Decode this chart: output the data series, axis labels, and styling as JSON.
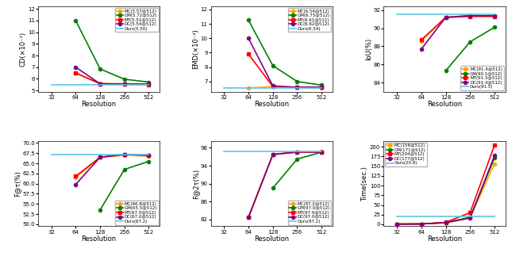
{
  "resolutions": [
    32,
    64,
    128,
    256,
    512
  ],
  "colors": {
    "MC": "orange",
    "GM": "green",
    "MT": "red",
    "DC": "purple",
    "Ours": "#5bc8e8"
  },
  "markers": {
    "MC": "o",
    "GM": "o",
    "MT": "s",
    "DC": "o",
    "Ours": null
  },
  "CD": {
    "MC": [
      null,
      6.5,
      5.6,
      5.58,
      5.57
    ],
    "GM": [
      null,
      11.0,
      6.85,
      5.97,
      5.72
    ],
    "MT": [
      null,
      6.5,
      5.58,
      5.55,
      5.51
    ],
    "DC": [
      null,
      7.0,
      5.58,
      5.55,
      5.54
    ],
    "Ours": [
      5.5,
      5.5,
      5.5,
      5.5,
      5.5
    ],
    "ylabel": "CD(×10⁻¹)",
    "ylim": [
      4.9,
      12.2
    ],
    "yticks": [
      5,
      6,
      7,
      8,
      9,
      10,
      11,
      12
    ],
    "legend_vals": {
      "MC": "5.57",
      "GM": "5.72",
      "MT": "5.51",
      "DC": "5.54",
      "Ours": "5.50"
    },
    "legend_loc": "upper right"
  },
  "EMD": {
    "MC": [
      null,
      6.55,
      6.65,
      6.6,
      6.54
    ],
    "GM": [
      null,
      11.25,
      8.1,
      7.0,
      6.75
    ],
    "MT": [
      null,
      8.9,
      6.65,
      6.6,
      6.61
    ],
    "DC": [
      null,
      10.0,
      6.7,
      6.6,
      6.62
    ],
    "Ours": [
      6.54,
      6.54,
      6.54,
      6.54,
      6.54
    ],
    "ylabel": "EMD(×10⁻³)",
    "ylim": [
      6.3,
      12.2
    ],
    "yticks": [
      7,
      8,
      9,
      10,
      11,
      12
    ],
    "legend_vals": {
      "MC": "6.54",
      "GM": "6.75",
      "MT": "6.61",
      "DC": "6.62",
      "Ours": "6.54"
    },
    "legend_loc": "upper right"
  },
  "IoU": {
    "MC": [
      null,
      88.6,
      91.2,
      91.4,
      91.4
    ],
    "GM": [
      null,
      null,
      85.3,
      88.5,
      90.1
    ],
    "MT": [
      null,
      88.7,
      91.2,
      91.3,
      91.3
    ],
    "DC": [
      null,
      87.7,
      91.2,
      91.4,
      91.4
    ],
    "Ours": [
      91.5,
      91.5,
      91.5,
      91.5,
      91.5
    ],
    "ylabel": "IoU(%)",
    "ylim": [
      83.0,
      92.4
    ],
    "yticks": [
      84,
      86,
      88,
      90,
      92
    ],
    "legend_vals": {
      "MC": "91.4",
      "GM": "90.1",
      "MT": "91.3",
      "DC": "91.4",
      "Ours": "91.5"
    },
    "legend_loc": "lower right"
  },
  "F1tau": {
    "MC": [
      null,
      61.5,
      66.5,
      67.0,
      66.8
    ],
    "GM": [
      null,
      null,
      53.5,
      63.5,
      65.5
    ],
    "MT": [
      null,
      61.8,
      66.5,
      67.2,
      67.0
    ],
    "DC": [
      null,
      59.8,
      66.5,
      67.2,
      67.0
    ],
    "Ours": [
      67.2,
      67.2,
      67.2,
      67.2,
      67.2
    ],
    "ylabel": "F@τ(%)",
    "ylim": [
      49.5,
      70.5
    ],
    "yticks": [
      50.0,
      52.5,
      55.0,
      57.5,
      60.0,
      62.5,
      65.0,
      67.5,
      70.0
    ],
    "legend_vals": {
      "MC": "66.8",
      "GM": "65.5",
      "MT": "67.0",
      "DC": "67.0",
      "Ours": "67.2"
    },
    "legend_loc": "lower right"
  },
  "F2tau": {
    "MC": [
      null,
      82.5,
      96.5,
      97.1,
      97.2
    ],
    "GM": [
      null,
      null,
      89.0,
      95.5,
      97.0
    ],
    "MT": [
      null,
      82.5,
      96.5,
      97.0,
      97.0
    ],
    "DC": [
      null,
      82.5,
      96.5,
      97.1,
      97.0
    ],
    "Ours": [
      97.2,
      97.2,
      97.2,
      97.2,
      97.2
    ],
    "ylabel": "F@2τ(%)",
    "ylim": [
      80.5,
      99.5
    ],
    "yticks": [
      82,
      86,
      90,
      94,
      98
    ],
    "legend_vals": {
      "MC": "97.2",
      "GM": "97.0",
      "MT": "97.0",
      "DC": "97.0",
      "Ours": "97.2"
    },
    "legend_loc": "lower right"
  },
  "Time": {
    "MC": [
      0.5,
      0.8,
      4.0,
      17.0,
      156.0
    ],
    "GM": [
      0.5,
      0.8,
      4.5,
      18.0,
      171.0
    ],
    "MT": [
      0.5,
      0.8,
      5.0,
      30.0,
      204.0
    ],
    "DC": [
      0.5,
      0.8,
      4.0,
      16.0,
      177.0
    ],
    "Ours": [
      20.8,
      20.8,
      20.8,
      20.8,
      20.8
    ],
    "ylabel": "Time(sec.)",
    "ylim": [
      -5,
      215
    ],
    "yticks": [
      0,
      25,
      50,
      75,
      100,
      125,
      150,
      175,
      200
    ],
    "legend_vals": {
      "MC": "156",
      "GM": "171",
      "MT": "204",
      "DC": "177",
      "Ours": "20.8"
    },
    "legend_loc": "upper left"
  }
}
